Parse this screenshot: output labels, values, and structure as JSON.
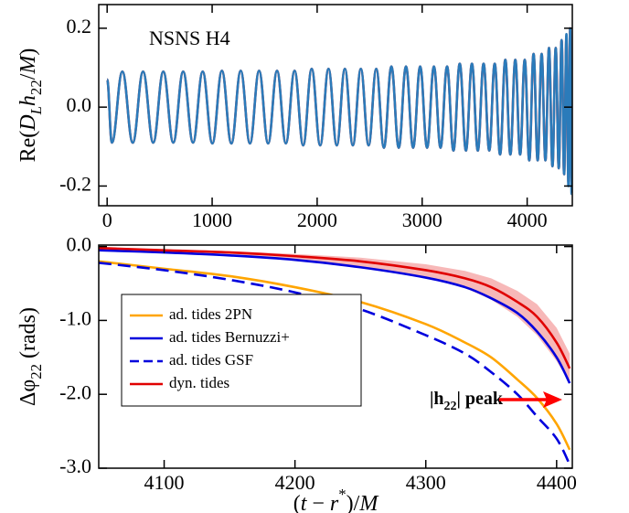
{
  "chart_data": [
    {
      "type": "line",
      "annotation": "NSNS H4",
      "ylabel": [
        {
          "text": "Re("
        },
        {
          "text": "D",
          "style": "i"
        },
        {
          "text": "L",
          "style": "isub"
        },
        {
          "text": "h",
          "style": "i"
        },
        {
          "text": "22",
          "style": "sub"
        },
        {
          "text": "/"
        },
        {
          "text": "M",
          "style": "i"
        },
        {
          "text": ")"
        }
      ],
      "xlim": [
        -80,
        4430
      ],
      "ylim": [
        -0.25,
        0.26
      ],
      "xticks": [
        0,
        1000,
        2000,
        3000,
        4000
      ],
      "yticks": [
        0.2,
        {
          "value": 0,
          "label": "0.0"
        },
        -0.2
      ],
      "x": [
        0,
        45,
        145,
        244,
        342,
        439,
        535,
        630,
        724,
        818,
        910,
        1002,
        1093,
        1183,
        1272,
        1360,
        1447,
        1533,
        1618,
        1702,
        1785,
        1867,
        1948,
        2029,
        2108,
        2187,
        2264,
        2340,
        2416,
        2490,
        2563,
        2636,
        2707,
        2777,
        2846,
        2914,
        2981,
        3047,
        3112,
        3175,
        3237,
        3298,
        3358,
        3417,
        3474,
        3530,
        3585,
        3639,
        3691,
        3742,
        3792,
        3840,
        3887,
        3933,
        3977,
        4020,
        4061,
        4100,
        4138,
        4174,
        4208,
        4241,
        4272,
        4301,
        4328,
        4352,
        4374,
        4393,
        4410,
        4423
      ],
      "series": [
        {
          "color": "#e41a1c",
          "values": [
            0.07,
            -0.09,
            0.09,
            -0.09,
            0.09,
            -0.09,
            0.09,
            -0.09,
            0.09,
            -0.09,
            0.09,
            -0.092,
            0.092,
            -0.092,
            0.092,
            -0.092,
            0.092,
            -0.092,
            0.092,
            -0.092,
            0.092,
            -0.097,
            0.097,
            -0.097,
            0.097,
            -0.097,
            0.097,
            -0.097,
            0.097,
            -0.097,
            0.097,
            -0.103,
            0.103,
            -0.103,
            0.103,
            -0.103,
            0.103,
            -0.103,
            0.103,
            -0.103,
            0.103,
            -0.11,
            0.11,
            -0.11,
            0.11,
            -0.11,
            0.11,
            -0.11,
            0.11,
            -0.12,
            0.12,
            -0.12,
            0.12,
            -0.12,
            0.12,
            -0.135,
            0.135,
            -0.135,
            0.135,
            -0.135,
            0.15,
            -0.15,
            0.15,
            -0.155,
            0.17,
            -0.17,
            0.18,
            -0.19,
            0.2,
            -0.18
          ]
        },
        {
          "color": "#2b7bba",
          "values": [
            0.07,
            -0.09,
            0.09,
            -0.09,
            0.09,
            -0.09,
            0.09,
            -0.09,
            0.09,
            -0.09,
            0.09,
            -0.092,
            0.092,
            -0.092,
            0.092,
            -0.092,
            0.092,
            -0.092,
            0.092,
            -0.092,
            0.092,
            -0.097,
            0.097,
            -0.097,
            0.097,
            -0.097,
            0.097,
            -0.097,
            0.097,
            -0.097,
            0.097,
            -0.103,
            0.103,
            -0.103,
            0.103,
            -0.103,
            0.103,
            -0.103,
            0.103,
            -0.103,
            0.103,
            -0.11,
            0.11,
            -0.11,
            0.11,
            -0.11,
            0.11,
            -0.11,
            0.11,
            -0.12,
            0.12,
            -0.12,
            0.12,
            -0.12,
            0.12,
            -0.135,
            0.135,
            -0.135,
            0.135,
            -0.135,
            0.15,
            -0.15,
            0.15,
            -0.155,
            0.17,
            -0.17,
            0.185,
            -0.2,
            0.2,
            -0.22
          ]
        }
      ]
    },
    {
      "type": "line",
      "annotation": [
        {
          "text": "|h"
        },
        {
          "text": "22",
          "style": "sub"
        },
        {
          "text": "| peak"
        }
      ],
      "annotation_color": "#ff0000",
      "ylabel": [
        {
          "text": "Δφ"
        },
        {
          "text": "22",
          "style": "sub"
        },
        {
          "text": " (rads)"
        }
      ],
      "xlabel": [
        {
          "text": "("
        },
        {
          "text": "t",
          "style": "i"
        },
        {
          "text": " − "
        },
        {
          "text": "r",
          "style": "i"
        },
        {
          "text": "*",
          "style": "sup"
        },
        {
          "text": ")/"
        },
        {
          "text": "M",
          "style": "i"
        }
      ],
      "xlim": [
        4050,
        4412
      ],
      "ylim": [
        -3.0,
        0.02
      ],
      "xticks": [
        4100,
        4200,
        4300,
        4400
      ],
      "yticks": [
        {
          "value": 0,
          "label": "0.0"
        },
        {
          "value": -1,
          "label": "-1.0"
        },
        {
          "value": -2,
          "label": "-2.0"
        },
        {
          "value": -3,
          "label": "-3.0"
        }
      ],
      "x": [
        4050,
        4100,
        4150,
        4200,
        4250,
        4300,
        4330,
        4350,
        4370,
        4385,
        4400,
        4410
      ],
      "band": {
        "color": "#f4a0a0",
        "high": [
          -0.01,
          -0.04,
          -0.06,
          -0.1,
          -0.15,
          -0.24,
          -0.33,
          -0.43,
          -0.6,
          -0.78,
          -1.1,
          -1.45
        ],
        "low": [
          -0.02,
          -0.06,
          -0.1,
          -0.17,
          -0.27,
          -0.42,
          -0.56,
          -0.72,
          -0.95,
          -1.2,
          -1.55,
          -1.85
        ]
      },
      "series": [
        {
          "name": "ad. tides 2PN",
          "color": "#ffa500",
          "values": [
            -0.2,
            -0.3,
            -0.4,
            -0.55,
            -0.75,
            -1.05,
            -1.3,
            -1.5,
            -1.8,
            -2.05,
            -2.4,
            -2.75
          ]
        },
        {
          "name": "ad. tides Bernuzzi+",
          "color": "#0000dd",
          "values": [
            -0.05,
            -0.08,
            -0.12,
            -0.18,
            -0.28,
            -0.42,
            -0.55,
            -0.7,
            -0.9,
            -1.15,
            -1.5,
            -1.85
          ]
        },
        {
          "name": "ad. tides GSF",
          "color": "#0000dd",
          "dash": true,
          "values": [
            -0.22,
            -0.32,
            -0.45,
            -0.62,
            -0.85,
            -1.2,
            -1.45,
            -1.7,
            -2.0,
            -2.3,
            -2.6,
            -2.95
          ]
        },
        {
          "name": "dyn. tides",
          "color": "#e00000",
          "values": [
            -0.02,
            -0.05,
            -0.08,
            -0.13,
            -0.2,
            -0.32,
            -0.43,
            -0.55,
            -0.75,
            -0.95,
            -1.3,
            -1.65
          ]
        }
      ]
    }
  ]
}
